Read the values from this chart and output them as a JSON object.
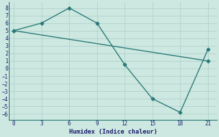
{
  "xlabel": "Humidex (Indice chaleur)",
  "background_color": "#cde8e0",
  "grid_color": "#b0d0cc",
  "line_color": "#2a7a78",
  "line2_x": [
    0,
    21
  ],
  "line2_y": [
    5,
    1.0
  ],
  "line3_x": [
    0,
    3,
    6,
    9,
    12,
    15,
    18,
    21
  ],
  "line3_y": [
    5,
    6,
    8,
    6,
    0.5,
    -4.0,
    -5.8,
    2.5
  ],
  "xlim": [
    -0.5,
    22
  ],
  "ylim": [
    -6.8,
    8.8
  ],
  "xticks": [
    0,
    3,
    6,
    9,
    12,
    15,
    18,
    21
  ],
  "yticks": [
    -6,
    -5,
    -4,
    -3,
    -2,
    -1,
    0,
    1,
    2,
    3,
    4,
    5,
    6,
    7,
    8
  ]
}
